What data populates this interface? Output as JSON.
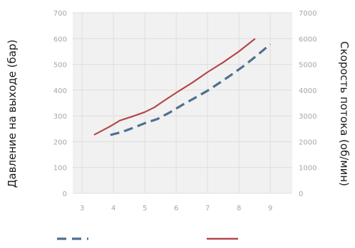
{
  "chart_data": {
    "type": "line",
    "ylabel": "Давление на выходе (бар)",
    "y2label": "Скорость потока (об/мин)",
    "x_ticks": [
      "3",
      "4",
      "5",
      "6",
      "7",
      "8",
      "9"
    ],
    "y_ticks": [
      "0",
      "100",
      "200",
      "300",
      "400",
      "500",
      "600",
      "700"
    ],
    "y2_ticks": [
      "0",
      "1000",
      "2000",
      "3000",
      "4000",
      "5000",
      "6000",
      "7000"
    ],
    "xlim": [
      2.7,
      9.7
    ],
    "ylim": [
      0,
      700
    ],
    "y2lim": [
      0,
      7000
    ],
    "grid": true,
    "legend": "bottom",
    "series": [
      {
        "axis": "left",
        "style": "solid",
        "color": "#b5474b",
        "x": [
          3.4,
          3.9,
          4.2,
          4.6,
          5.0,
          5.3,
          5.6,
          6.0,
          6.5,
          7.0,
          7.5,
          8.0,
          8.5
        ],
        "y": [
          228,
          260,
          282,
          298,
          315,
          333,
          358,
          390,
          428,
          470,
          508,
          550,
          598
        ]
      },
      {
        "axis": "right",
        "style": "dashed",
        "color": "#4e6f8f",
        "x": [
          3.9,
          4.3,
          4.7,
          5.0,
          5.4,
          5.8,
          6.2,
          6.6,
          7.0,
          7.4,
          7.8,
          8.2,
          8.6,
          9.0
        ],
        "y": [
          2260,
          2390,
          2570,
          2720,
          2880,
          3140,
          3430,
          3700,
          3980,
          4300,
          4630,
          4980,
          5370,
          5780
        ]
      }
    ]
  },
  "legend_items": [
    {
      "color": "#4e6f8f",
      "style": "dashed"
    },
    {
      "color": "#b5474b",
      "style": "solid"
    }
  ]
}
